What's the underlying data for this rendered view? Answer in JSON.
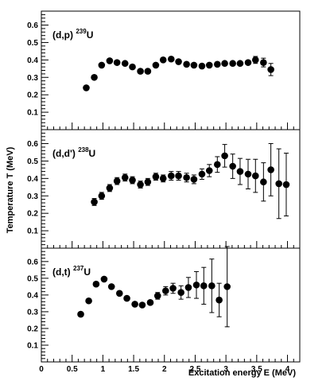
{
  "chart_data": {
    "type": "scatter",
    "xlabel": "Excitation energy E (MeV)",
    "ylabel": "Temperature T (MeV)",
    "xlim": [
      0,
      4.2
    ],
    "ylim": [
      0,
      0.68
    ],
    "xticks": [
      "0",
      "0.5",
      "1",
      "1.5",
      "2",
      "2.5",
      "3",
      "3.5",
      "4"
    ],
    "yticks": [
      "0.1",
      "0.2",
      "0.3",
      "0.4",
      "0.5",
      "0.6"
    ],
    "grid": false,
    "marker": "filled-circle",
    "marker_color": "#000000",
    "panels": [
      {
        "label_main": "(d,p)",
        "label_sup": "239",
        "label_elem": "U",
        "x": [
          0.73,
          0.86,
          0.98,
          1.11,
          1.23,
          1.36,
          1.48,
          1.61,
          1.73,
          1.86,
          1.98,
          2.11,
          2.23,
          2.36,
          2.48,
          2.61,
          2.73,
          2.86,
          2.98,
          3.11,
          3.23,
          3.36,
          3.48,
          3.61,
          3.73
        ],
        "y": [
          0.24,
          0.3,
          0.37,
          0.395,
          0.385,
          0.38,
          0.36,
          0.335,
          0.335,
          0.37,
          0.4,
          0.405,
          0.39,
          0.375,
          0.37,
          0.365,
          0.37,
          0.375,
          0.38,
          0.38,
          0.38,
          0.385,
          0.4,
          0.385,
          0.345
        ],
        "err": [
          0,
          0,
          0,
          0,
          0,
          0,
          0,
          0,
          0,
          0,
          0,
          0,
          0,
          0,
          0,
          0,
          0,
          0,
          0,
          0,
          0,
          0,
          0.02,
          0.025,
          0.035
        ]
      },
      {
        "label_main": "(d,d')",
        "label_sup": "238",
        "label_elem": "U",
        "x": [
          0.86,
          0.98,
          1.11,
          1.23,
          1.36,
          1.48,
          1.61,
          1.73,
          1.86,
          1.98,
          2.11,
          2.23,
          2.36,
          2.48,
          2.61,
          2.73,
          2.86,
          2.98,
          3.11,
          3.23,
          3.36,
          3.48,
          3.61,
          3.73,
          3.86,
          3.98
        ],
        "y": [
          0.265,
          0.3,
          0.345,
          0.385,
          0.405,
          0.39,
          0.365,
          0.38,
          0.41,
          0.4,
          0.415,
          0.415,
          0.405,
          0.395,
          0.425,
          0.445,
          0.48,
          0.53,
          0.47,
          0.44,
          0.425,
          0.415,
          0.38,
          0.45,
          0.37,
          0.365
        ],
        "err": [
          0.02,
          0.02,
          0.02,
          0.02,
          0.02,
          0.02,
          0.02,
          0.02,
          0.02,
          0.02,
          0.025,
          0.025,
          0.025,
          0.025,
          0.03,
          0.035,
          0.045,
          0.065,
          0.07,
          0.075,
          0.085,
          0.095,
          0.11,
          0.15,
          0.2,
          0.18
        ]
      },
      {
        "label_main": "(d,t)",
        "label_sup": "237",
        "label_elem": "U",
        "x": [
          0.64,
          0.77,
          0.89,
          1.02,
          1.14,
          1.27,
          1.39,
          1.52,
          1.64,
          1.77,
          1.89,
          2.02,
          2.14,
          2.27,
          2.39,
          2.52,
          2.64,
          2.77,
          2.89,
          3.02
        ],
        "y": [
          0.285,
          0.365,
          0.465,
          0.495,
          0.45,
          0.41,
          0.38,
          0.345,
          0.34,
          0.355,
          0.395,
          0.425,
          0.44,
          0.415,
          0.445,
          0.46,
          0.455,
          0.455,
          0.37,
          0.45
        ],
        "err": [
          0,
          0,
          0,
          0,
          0,
          0,
          0,
          0,
          0,
          0,
          0.02,
          0.025,
          0.03,
          0.04,
          0.06,
          0.08,
          0.11,
          0.16,
          0.1,
          0.24
        ]
      }
    ]
  }
}
